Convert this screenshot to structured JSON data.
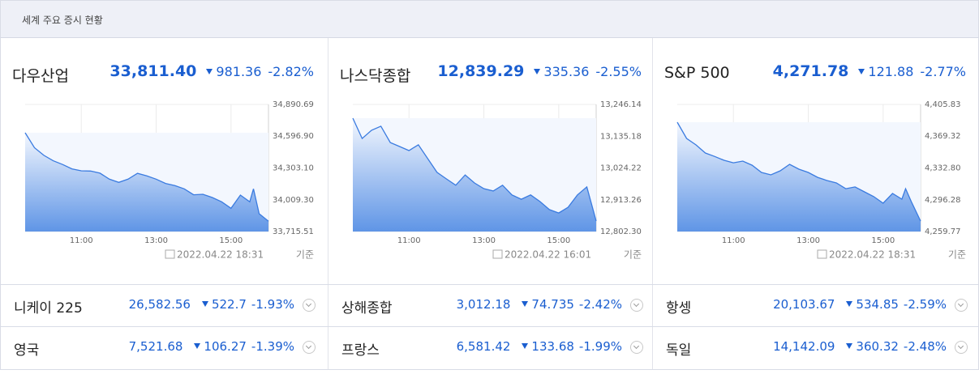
{
  "header": {
    "title": "세계 주요 증시 현황"
  },
  "panels": [
    {
      "name": "다우산업",
      "price": "33,811.40",
      "change": "981.36",
      "percent": "-2.82%",
      "date": "2022.04.22 18:31",
      "basis": "기준"
    },
    {
      "name": "나스닥종합",
      "price": "12,839.29",
      "change": "335.36",
      "percent": "-2.55%",
      "date": "2022.04.22 16:01",
      "basis": "기준"
    },
    {
      "name": "S&P 500",
      "price": "4,271.78",
      "change": "121.88",
      "percent": "-2.77%",
      "date": "2022.04.22 18:31",
      "basis": "기준"
    }
  ],
  "chart_data": [
    {
      "type": "line",
      "color": "#3a7be0",
      "x": [
        9.5,
        9.75,
        10.0,
        10.25,
        10.5,
        10.75,
        11.0,
        11.25,
        11.5,
        11.75,
        12.0,
        12.25,
        12.5,
        12.75,
        13.0,
        13.25,
        13.5,
        13.75,
        14.0,
        14.25,
        14.5,
        14.75,
        15.0,
        15.25,
        15.5,
        15.6,
        15.75,
        16.0
      ],
      "values": [
        34629,
        34490,
        34420,
        34370,
        34335,
        34295,
        34277,
        34275,
        34255,
        34200,
        34170,
        34200,
        34254,
        34230,
        34200,
        34160,
        34140,
        34110,
        34055,
        34060,
        34030,
        33990,
        33930,
        34052,
        33990,
        34110,
        33880,
        33811
      ],
      "xlim": [
        9.5,
        16.0
      ],
      "xticks": [
        {
          "value": 11,
          "label": "11:00"
        },
        {
          "value": 13,
          "label": "13:00"
        },
        {
          "value": 15,
          "label": "15:00"
        }
      ],
      "ylim": [
        33715.51,
        34890.69
      ],
      "yticks": [
        {
          "value": 34890.69,
          "label": "34,890.69"
        },
        {
          "value": 34596.9,
          "label": "34,596.90"
        },
        {
          "value": 34303.1,
          "label": "34,303.10"
        },
        {
          "value": 34009.3,
          "label": "34,009.30"
        },
        {
          "value": 33715.51,
          "label": "33,715.51"
        }
      ],
      "grid": true
    },
    {
      "type": "line",
      "color": "#3a7be0",
      "x": [
        9.5,
        9.75,
        10.0,
        10.25,
        10.5,
        10.75,
        11.0,
        11.25,
        11.5,
        11.75,
        12.0,
        12.25,
        12.5,
        12.75,
        13.0,
        13.25,
        13.5,
        13.75,
        14.0,
        14.25,
        14.5,
        14.75,
        15.0,
        15.25,
        15.5,
        15.75,
        16.0
      ],
      "values": [
        13198,
        13127,
        13156,
        13170,
        13113,
        13099,
        13085,
        13105,
        13057,
        13009,
        12986,
        12964,
        13000,
        12972,
        12952,
        12944,
        12964,
        12930,
        12915,
        12930,
        12907,
        12879,
        12867,
        12887,
        12930,
        12958,
        12839
      ],
      "xlim": [
        9.5,
        16.0
      ],
      "xticks": [
        {
          "value": 11,
          "label": "11:00"
        },
        {
          "value": 13,
          "label": "13:00"
        },
        {
          "value": 15,
          "label": "15:00"
        }
      ],
      "ylim": [
        12802.3,
        13246.14
      ],
      "yticks": [
        {
          "value": 13246.14,
          "label": "13,246.14"
        },
        {
          "value": 13135.18,
          "label": "13,135.18"
        },
        {
          "value": 13024.22,
          "label": "13,024.22"
        },
        {
          "value": 12913.26,
          "label": "12,913.26"
        },
        {
          "value": 12802.3,
          "label": "12,802.30"
        }
      ],
      "grid": true
    },
    {
      "type": "line",
      "color": "#3a7be0",
      "x": [
        9.5,
        9.75,
        10.0,
        10.25,
        10.5,
        10.75,
        11.0,
        11.25,
        11.5,
        11.75,
        12.0,
        12.25,
        12.5,
        12.75,
        13.0,
        13.25,
        13.5,
        13.75,
        14.0,
        14.25,
        14.5,
        14.75,
        15.0,
        15.25,
        15.5,
        15.6,
        15.75,
        16.0
      ],
      "values": [
        4385.4,
        4366.8,
        4359.3,
        4350,
        4346,
        4341.6,
        4338.8,
        4340.7,
        4336,
        4327.7,
        4324.9,
        4329.5,
        4337,
        4331.4,
        4327.7,
        4322,
        4318.4,
        4315.6,
        4309,
        4311,
        4305.4,
        4299.9,
        4292.3,
        4303.5,
        4297,
        4309,
        4294.2,
        4271.8
      ],
      "xlim": [
        9.5,
        16.0
      ],
      "xticks": [
        {
          "value": 11,
          "label": "11:00"
        },
        {
          "value": 13,
          "label": "13:00"
        },
        {
          "value": 15,
          "label": "15:00"
        }
      ],
      "ylim": [
        4259.77,
        4405.83
      ],
      "yticks": [
        {
          "value": 4405.83,
          "label": "4,405.83"
        },
        {
          "value": 4369.32,
          "label": "4,369.32"
        },
        {
          "value": 4332.8,
          "label": "4,332.80"
        },
        {
          "value": 4296.28,
          "label": "4,296.28"
        },
        {
          "value": 4259.77,
          "label": "4,259.77"
        }
      ],
      "grid": true
    }
  ],
  "table": {
    "rows": [
      [
        {
          "name": "니케이 225",
          "price": "26,582.56",
          "change": "522.7",
          "percent": "-1.93%"
        },
        {
          "name": "상해종합",
          "price": "3,012.18",
          "change": "74.735",
          "percent": "-2.42%"
        },
        {
          "name": "항셍",
          "price": "20,103.67",
          "change": "534.85",
          "percent": "-2.59%"
        }
      ],
      [
        {
          "name": "영국",
          "price": "7,521.68",
          "change": "106.27",
          "percent": "-1.39%"
        },
        {
          "name": "프랑스",
          "price": "6,581.42",
          "change": "133.68",
          "percent": "-1.99%"
        },
        {
          "name": "독일",
          "price": "14,142.09",
          "change": "360.32",
          "percent": "-2.48%"
        }
      ]
    ]
  }
}
